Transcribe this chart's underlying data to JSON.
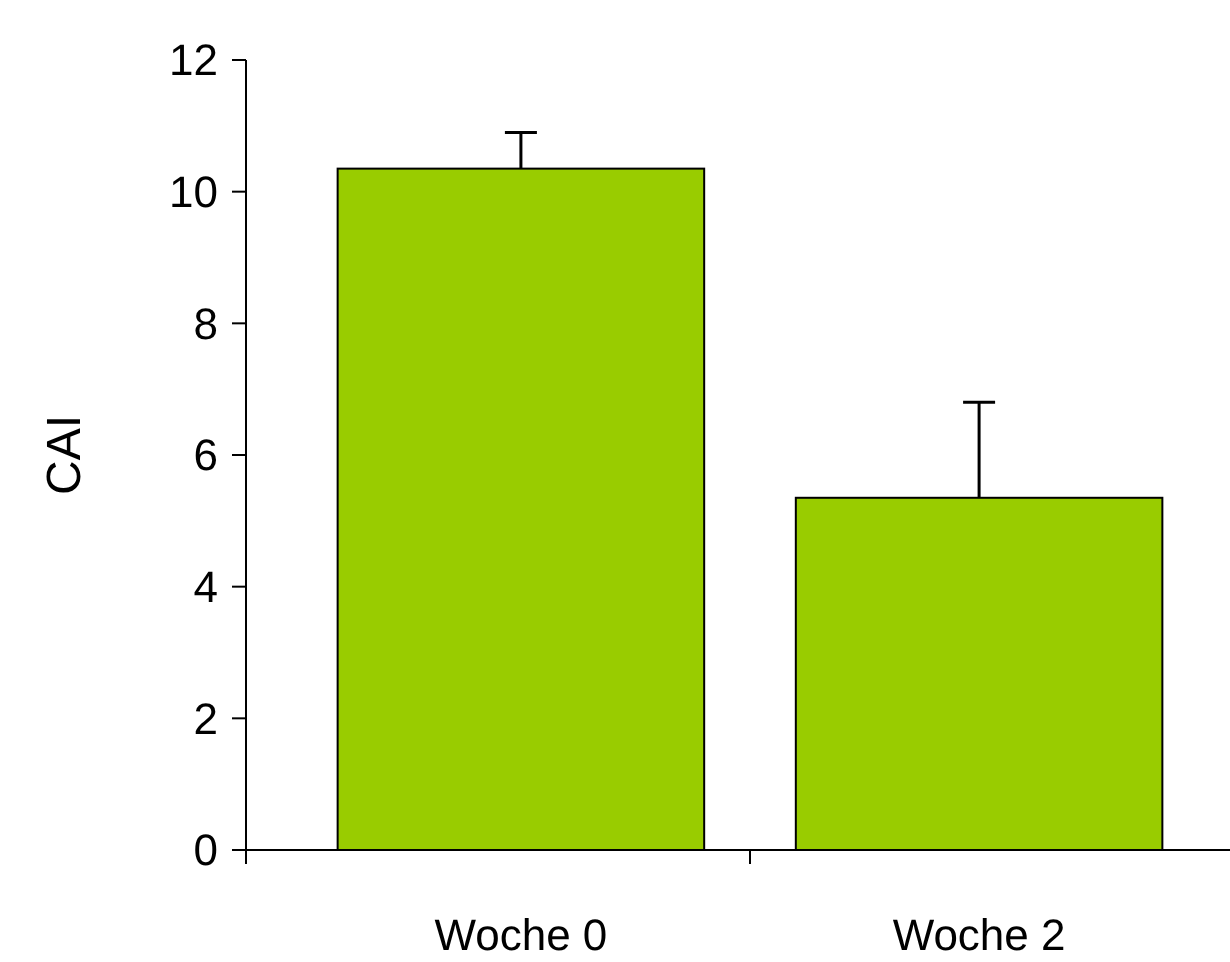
{
  "chart_data": {
    "type": "bar",
    "ylabel": "CAI",
    "categories": [
      "Woche 0",
      "Woche 2"
    ],
    "values": [
      10.35,
      5.35
    ],
    "errors": [
      [
        10.35,
        10.9
      ],
      [
        5.35,
        6.8
      ]
    ],
    "color": "#99cc00",
    "ylim": [
      0,
      12
    ],
    "yticks": [
      0,
      2,
      4,
      6,
      8,
      10,
      12
    ],
    "grid": false
  }
}
